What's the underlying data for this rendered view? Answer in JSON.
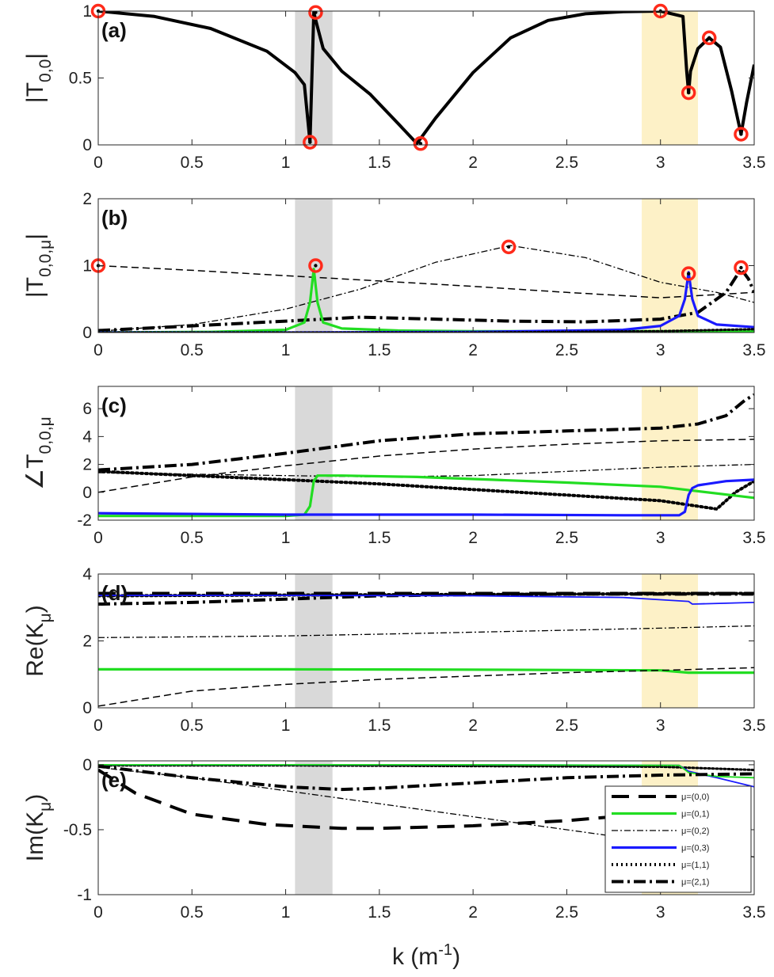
{
  "chart_data": {
    "type": "line",
    "xlabel": "k (m",
    "xlabel_sup": "-1",
    "xlabel_end": ")",
    "xlim": [
      0,
      3.5
    ],
    "xticks": [
      0,
      0.5,
      1,
      1.5,
      2,
      2.5,
      3,
      3.5
    ],
    "xtick_labels": [
      "0",
      "0.5",
      "1",
      "1.5",
      "2",
      "2.5",
      "3",
      "3.5"
    ],
    "grid": false,
    "shaded_bands": [
      {
        "x0": 1.05,
        "x1": 1.25,
        "color": "#d9d9d9"
      },
      {
        "x0": 2.9,
        "x1": 3.2,
        "color": "#fdf1c7"
      }
    ],
    "styles": {
      "mu00": {
        "color": "#000000",
        "width": 4,
        "dash": "22,12"
      },
      "mu01": {
        "color": "#22dd22",
        "width": 3.2,
        "dash": ""
      },
      "mu02": {
        "color": "#000000",
        "width": 1.3,
        "dash": "8,3,2,3"
      },
      "mu03": {
        "color": "#1a1aff",
        "width": 3.2,
        "dash": ""
      },
      "mu11": {
        "color": "#000000",
        "width": 4,
        "dash": "2,4"
      },
      "mu21": {
        "color": "#000000",
        "width": 4,
        "dash": "15,5,3,5"
      },
      "solid": {
        "color": "#000000",
        "width": 4,
        "dash": ""
      },
      "dash_thin": {
        "color": "#000000",
        "width": 1.5,
        "dash": "9,5"
      },
      "blue_thin": {
        "color": "#1a1aff",
        "width": 1.8,
        "dash": ""
      },
      "green_thin": {
        "color": "#22dd22",
        "width": 1.8,
        "dash": ""
      },
      "dot_thin": {
        "color": "#000000",
        "width": 3,
        "dash": "2,3"
      }
    },
    "marker_color": "#ff2a1a",
    "legend": {
      "placement": "lower-right of panel (e)",
      "entries": [
        {
          "label": "μ=(0,0)",
          "style": "mu00"
        },
        {
          "label": "μ=(0,1)",
          "style": "mu01"
        },
        {
          "label": "μ=(0,2)",
          "style": "mu02"
        },
        {
          "label": "μ=(0,3)",
          "style": "mu03"
        },
        {
          "label": "μ=(1,1)",
          "style": "mu11"
        },
        {
          "label": "μ=(2,1)",
          "style": "mu21"
        }
      ]
    },
    "panels": [
      {
        "id": "a",
        "label": "(a)",
        "ylabel": "|T",
        "ylabel_sub": "0,0",
        "ylabel_end": "|",
        "ylim": [
          0,
          1
        ],
        "yticks": [
          0,
          0.5,
          1
        ],
        "ytick_labels": [
          "0",
          "0.5",
          "1"
        ],
        "series": [
          {
            "style": "solid",
            "x": [
              0,
              0.3,
              0.6,
              0.9,
              1.05,
              1.1,
              1.13,
              1.15,
              1.17,
              1.2,
              1.3,
              1.45,
              1.6,
              1.7,
              1.8,
              2.0,
              2.2,
              2.4,
              2.6,
              2.8,
              3.0,
              3.12,
              3.14,
              3.15,
              3.16,
              3.2,
              3.26,
              3.32,
              3.38,
              3.43,
              3.46,
              3.5
            ],
            "y": [
              1,
              0.96,
              0.87,
              0.7,
              0.54,
              0.45,
              0.02,
              0.99,
              0.88,
              0.72,
              0.55,
              0.38,
              0.16,
              0.01,
              0.2,
              0.54,
              0.8,
              0.93,
              0.98,
              0.995,
              1.0,
              0.96,
              0.55,
              0.39,
              0.55,
              0.72,
              0.8,
              0.73,
              0.4,
              0.08,
              0.32,
              0.6
            ]
          }
        ],
        "markers": {
          "x": [
            0,
            1.13,
            1.16,
            1.72,
            3.0,
            3.15,
            3.26,
            3.43
          ],
          "y": [
            1.0,
            0.02,
            0.99,
            0.01,
            1.0,
            0.39,
            0.8,
            0.08
          ]
        }
      },
      {
        "id": "b",
        "label": "(b)",
        "ylabel": "|T",
        "ylabel_sub": "0,0,μ",
        "ylabel_end": "|",
        "ylim": [
          0,
          2
        ],
        "yticks": [
          0,
          1,
          2
        ],
        "ytick_labels": [
          "0",
          "1",
          "2"
        ],
        "series": [
          {
            "style": "dash_thin",
            "x": [
              0,
              0.5,
              1,
              1.5,
              2,
              2.5,
              3,
              3.5
            ],
            "y": [
              1.0,
              0.93,
              0.85,
              0.77,
              0.69,
              0.6,
              0.52,
              0.6
            ]
          },
          {
            "style": "mu02",
            "x": [
              0,
              0.5,
              1.0,
              1.4,
              1.8,
              2.2,
              2.6,
              3.0,
              3.3,
              3.5
            ],
            "y": [
              0.02,
              0.12,
              0.35,
              0.65,
              1.05,
              1.3,
              1.12,
              0.75,
              0.6,
              0.45
            ]
          },
          {
            "style": "mu21",
            "x": [
              0,
              0.5,
              1.0,
              1.4,
              1.8,
              2.2,
              2.6,
              3.0,
              3.2,
              3.35,
              3.43,
              3.47,
              3.5
            ],
            "y": [
              0.03,
              0.1,
              0.17,
              0.23,
              0.2,
              0.17,
              0.16,
              0.2,
              0.3,
              0.6,
              0.95,
              0.8,
              0.6
            ]
          },
          {
            "style": "mu01",
            "x": [
              0,
              0.6,
              1.0,
              1.1,
              1.13,
              1.15,
              1.17,
              1.2,
              1.3,
              1.6,
              2.0,
              2.5,
              3.0,
              3.5
            ],
            "y": [
              0.0,
              0.01,
              0.04,
              0.15,
              0.45,
              0.95,
              0.45,
              0.15,
              0.06,
              0.03,
              0.02,
              0.02,
              0.02,
              0.02
            ]
          },
          {
            "style": "mu03",
            "x": [
              0,
              1.0,
              2.0,
              2.8,
              3.0,
              3.1,
              3.13,
              3.15,
              3.17,
              3.2,
              3.3,
              3.5
            ],
            "y": [
              0.0,
              0.0,
              0.01,
              0.04,
              0.1,
              0.25,
              0.5,
              0.9,
              0.5,
              0.25,
              0.12,
              0.08
            ]
          },
          {
            "style": "dot_thin",
            "x": [
              0,
              1,
              2,
              3,
              3.5
            ],
            "y": [
              0.0,
              0.0,
              0.0,
              0.02,
              0.05
            ]
          }
        ],
        "markers": {
          "x": [
            0,
            1.16,
            2.19,
            3.15,
            3.43
          ],
          "y": [
            1.0,
            1.0,
            1.28,
            0.88,
            0.97
          ]
        }
      },
      {
        "id": "c",
        "label": "(c)",
        "ylabel": "∠T",
        "ylabel_sub": "0,0,μ",
        "ylabel_end": "",
        "ylim": [
          -2,
          7.6
        ],
        "yticks": [
          -2,
          0,
          2,
          4,
          6
        ],
        "ytick_labels": [
          "-2",
          "0",
          "2",
          "4",
          "6"
        ],
        "series": [
          {
            "style": "mu21",
            "x": [
              0,
              0.5,
              1.0,
              1.5,
              2.0,
              2.5,
              3.0,
              3.2,
              3.35,
              3.45,
              3.5
            ],
            "y": [
              1.6,
              2.0,
              2.8,
              3.7,
              4.2,
              4.4,
              4.6,
              4.9,
              5.5,
              6.6,
              7.0
            ]
          },
          {
            "style": "dash_thin",
            "x": [
              0,
              0.5,
              1.0,
              1.5,
              2.0,
              2.5,
              3.0,
              3.5
            ],
            "y": [
              0.0,
              1.1,
              1.9,
              2.6,
              3.1,
              3.45,
              3.7,
              3.8
            ]
          },
          {
            "style": "mu02",
            "x": [
              0,
              0.5,
              1.0,
              1.5,
              2.0,
              2.5,
              3.0,
              3.5
            ],
            "y": [
              1.4,
              1.3,
              1.2,
              1.1,
              1.2,
              1.5,
              1.8,
              2.0
            ]
          },
          {
            "style": "mu11",
            "x": [
              0,
              0.5,
              1.0,
              1.5,
              2.0,
              2.5,
              3.0,
              3.2,
              3.3,
              3.4,
              3.5
            ],
            "y": [
              1.5,
              1.2,
              0.9,
              0.6,
              0.2,
              -0.2,
              -0.6,
              -1.0,
              -1.2,
              0.0,
              0.8
            ]
          },
          {
            "style": "mu01",
            "x": [
              0,
              0.5,
              1.0,
              1.1,
              1.13,
              1.15,
              1.17,
              1.3,
              1.7,
              2.1,
              2.5,
              3.0,
              3.5
            ],
            "y": [
              -1.7,
              -1.7,
              -1.7,
              -1.6,
              -1.0,
              0.8,
              1.2,
              1.2,
              1.1,
              0.9,
              0.7,
              0.4,
              -0.4
            ]
          },
          {
            "style": "mu03",
            "x": [
              0,
              1.0,
              2.0,
              2.8,
              3.1,
              3.13,
              3.15,
              3.17,
              3.2,
              3.35,
              3.5
            ],
            "y": [
              -1.5,
              -1.6,
              -1.6,
              -1.65,
              -1.65,
              -1.4,
              -0.2,
              0.3,
              0.5,
              0.8,
              0.9
            ]
          }
        ],
        "markers": {
          "x": [],
          "y": []
        }
      },
      {
        "id": "d",
        "label": "(d)",
        "ylabel": "Re(K",
        "ylabel_sub": "μ",
        "ylabel_end": ")",
        "ylim": [
          0,
          4
        ],
        "yticks": [
          0,
          2,
          4
        ],
        "ytick_labels": [
          "0",
          "2",
          "4"
        ],
        "series": [
          {
            "style": "mu11",
            "x": [
              0,
              0.5,
              1.0,
              1.5,
              2.0,
              2.5,
              3.0,
              3.5
            ],
            "y": [
              3.35,
              3.36,
              3.37,
              3.38,
              3.39,
              3.4,
              3.41,
              3.42
            ]
          },
          {
            "style": "mu00",
            "x": [
              0,
              3.5
            ],
            "y": [
              3.42,
              3.42
            ]
          },
          {
            "style": "mu21",
            "x": [
              0,
              0.5,
              1.0,
              1.5,
              2.0,
              2.5,
              3.0,
              3.5
            ],
            "y": [
              3.1,
              3.15,
              3.25,
              3.35,
              3.38,
              3.4,
              3.4,
              3.4
            ]
          },
          {
            "style": "blue_thin",
            "x": [
              0,
              1.0,
              2.0,
              2.8,
              3.15,
              3.17,
              3.5
            ],
            "y": [
              3.36,
              3.36,
              3.35,
              3.3,
              3.18,
              3.1,
              3.15
            ]
          },
          {
            "style": "mu02",
            "x": [
              0,
              0.5,
              1.0,
              1.5,
              2.0,
              2.5,
              3.0,
              3.5
            ],
            "y": [
              2.1,
              2.12,
              2.15,
              2.2,
              2.26,
              2.32,
              2.38,
              2.45
            ]
          },
          {
            "style": "mu01",
            "x": [
              0,
              1.0,
              2.0,
              3.0,
              3.15,
              3.5
            ],
            "y": [
              1.15,
              1.15,
              1.14,
              1.12,
              1.05,
              1.05
            ]
          },
          {
            "style": "dash_thin",
            "x": [
              0,
              0.5,
              1.0,
              1.5,
              2.0,
              2.5,
              3.0,
              3.5
            ],
            "y": [
              0.05,
              0.5,
              0.7,
              0.85,
              0.95,
              1.05,
              1.12,
              1.2
            ]
          }
        ],
        "markers": {
          "x": [],
          "y": []
        }
      },
      {
        "id": "e",
        "label": "(e)",
        "ylabel": "Im(K",
        "ylabel_sub": "μ",
        "ylabel_end": ")",
        "ylim": [
          -1,
          0.03
        ],
        "yticks": [
          -1,
          -0.5,
          0
        ],
        "ytick_labels": [
          "-1",
          "-0.5",
          "0"
        ],
        "series": [
          {
            "style": "dot_thin",
            "x": [
              0,
              1,
              2,
              3,
              3.5
            ],
            "y": [
              -0.005,
              -0.005,
              -0.01,
              -0.015,
              -0.04
            ]
          },
          {
            "style": "blue_thin",
            "x": [
              0,
              1,
              2,
              3.1,
              3.15,
              3.3,
              3.5
            ],
            "y": [
              0.0,
              0.0,
              0.0,
              -0.005,
              -0.05,
              -0.1,
              -0.17
            ]
          },
          {
            "style": "green_thin",
            "x": [
              0,
              1,
              2,
              3.1,
              3.15,
              3.3,
              3.5
            ],
            "y": [
              0.0,
              0.0,
              0.0,
              -0.005,
              -0.06,
              -0.09,
              -0.1
            ]
          },
          {
            "style": "mu21",
            "x": [
              0,
              0.5,
              1.0,
              1.3,
              1.5,
              2.0,
              2.5,
              3.0,
              3.5
            ],
            "y": [
              -0.01,
              -0.1,
              -0.17,
              -0.19,
              -0.18,
              -0.14,
              -0.1,
              -0.08,
              -0.07
            ]
          },
          {
            "style": "mu02",
            "x": [
              0,
              0.5,
              1.0,
              1.5,
              2.0,
              2.5,
              3.0,
              3.5
            ],
            "y": [
              -0.02,
              -0.1,
              -0.2,
              -0.3,
              -0.4,
              -0.5,
              -0.6,
              -0.71
            ]
          },
          {
            "style": "mu00",
            "x": [
              0,
              0.2,
              0.5,
              0.9,
              1.3,
              1.5,
              2.0,
              2.5,
              3.0,
              3.5
            ],
            "y": [
              -0.04,
              -0.22,
              -0.38,
              -0.46,
              -0.49,
              -0.49,
              -0.47,
              -0.43,
              -0.37,
              -0.3
            ]
          }
        ],
        "markers": {
          "x": [],
          "y": []
        }
      }
    ]
  }
}
